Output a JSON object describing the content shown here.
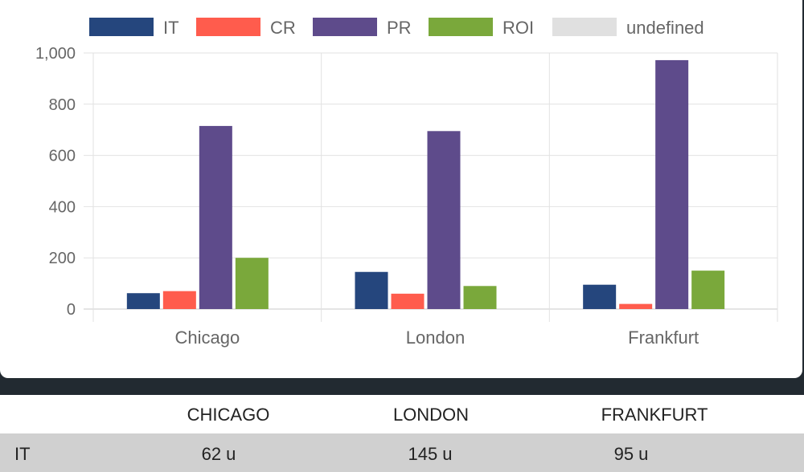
{
  "chart_data": {
    "type": "bar",
    "categories": [
      "Chicago",
      "London",
      "Frankfurt"
    ],
    "series": [
      {
        "name": "IT",
        "color": "#25467d",
        "values": [
          62,
          145,
          95
        ]
      },
      {
        "name": "CR",
        "color": "#ff5c4d",
        "values": [
          70,
          60,
          20
        ]
      },
      {
        "name": "PR",
        "color": "#5e4b8b",
        "values": [
          715,
          695,
          972
        ]
      },
      {
        "name": "ROI",
        "color": "#7aa83b",
        "values": [
          200,
          90,
          150
        ]
      },
      {
        "name": "undefined",
        "color": "#e0e0e0",
        "values": [
          0,
          0,
          0
        ]
      }
    ],
    "ylim": [
      0,
      1000
    ],
    "yticks": [
      0,
      200,
      400,
      600,
      800,
      1000
    ],
    "ytick_labels": [
      "0",
      "200",
      "400",
      "600",
      "800",
      "1,000"
    ],
    "grid": true,
    "legend": "top"
  },
  "table": {
    "columns": [
      "CHICAGO",
      "LONDON",
      "FRANKFURT"
    ],
    "rows": [
      {
        "label": "IT",
        "values": [
          "62 u",
          "145 u",
          "95 u"
        ]
      }
    ]
  }
}
